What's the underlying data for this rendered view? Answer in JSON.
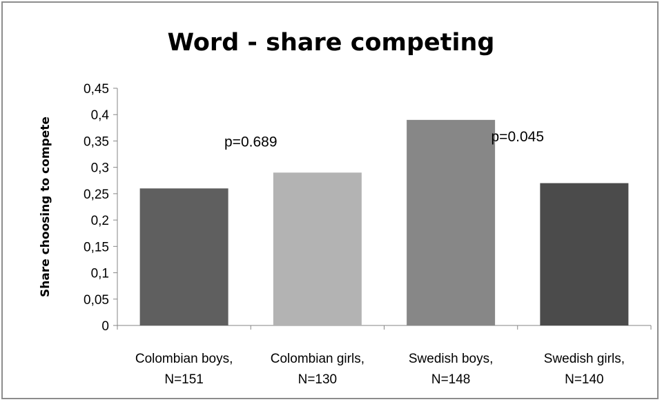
{
  "chart_data": {
    "type": "bar",
    "title": "Word - share competing",
    "ylabel": "Share choosing to compete",
    "xlabel": "",
    "categories": [
      [
        "Colombian boys,",
        "N=151"
      ],
      [
        "Colombian girls,",
        "N=130"
      ],
      [
        "Swedish boys,",
        "N=148"
      ],
      [
        "Swedish girls,",
        "N=140"
      ]
    ],
    "values": [
      0.26,
      0.29,
      0.39,
      0.27
    ],
    "bar_colors": [
      "#5f5f5f",
      "#b3b3b3",
      "#878787",
      "#4b4b4b"
    ],
    "ylim": [
      0,
      0.45
    ],
    "yticks": [
      0,
      0.05,
      0.1,
      0.15,
      0.2,
      0.25,
      0.3,
      0.35,
      0.4,
      0.45
    ],
    "ytick_labels": [
      "0",
      "0,05",
      "0,1",
      "0,15",
      "0,2",
      "0,25",
      "0,3",
      "0,35",
      "0,4",
      "0,45"
    ],
    "grid": false,
    "annotations": [
      {
        "text": "p=0.689",
        "between": [
          0,
          1
        ],
        "y": 0.35
      },
      {
        "text": "p=0.045",
        "between": [
          2,
          3
        ],
        "y": 0.36
      }
    ]
  }
}
